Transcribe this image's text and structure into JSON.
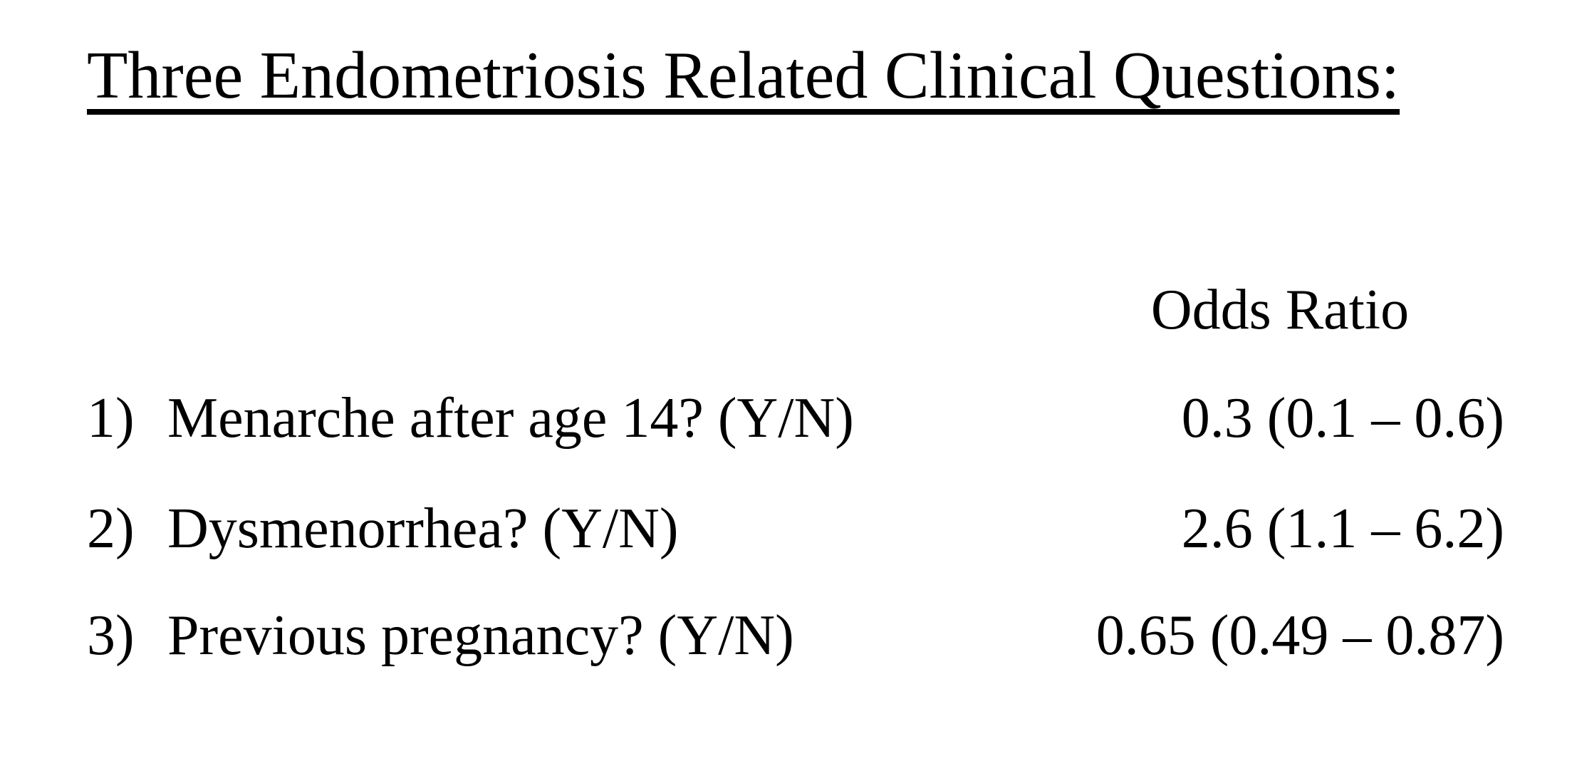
{
  "slide": {
    "title": "Three Endometriosis Related Clinical Questions:",
    "table": {
      "value_header": "Odds Ratio",
      "rows": [
        {
          "number": "1)",
          "question": "Menarche after age 14? (Y/N)",
          "odds_ratio": "0.3 (0.1 – 0.6)"
        },
        {
          "number": "2)",
          "question": "Dysmenorrhea? (Y/N)",
          "odds_ratio": "2.6 (1.1 – 6.2)"
        },
        {
          "number": "3)",
          "question": "Previous pregnancy? (Y/N)",
          "odds_ratio": "0.65 (0.49 – 0.87)"
        }
      ]
    },
    "colors": {
      "background": "#ffffff",
      "text": "#000000"
    }
  }
}
